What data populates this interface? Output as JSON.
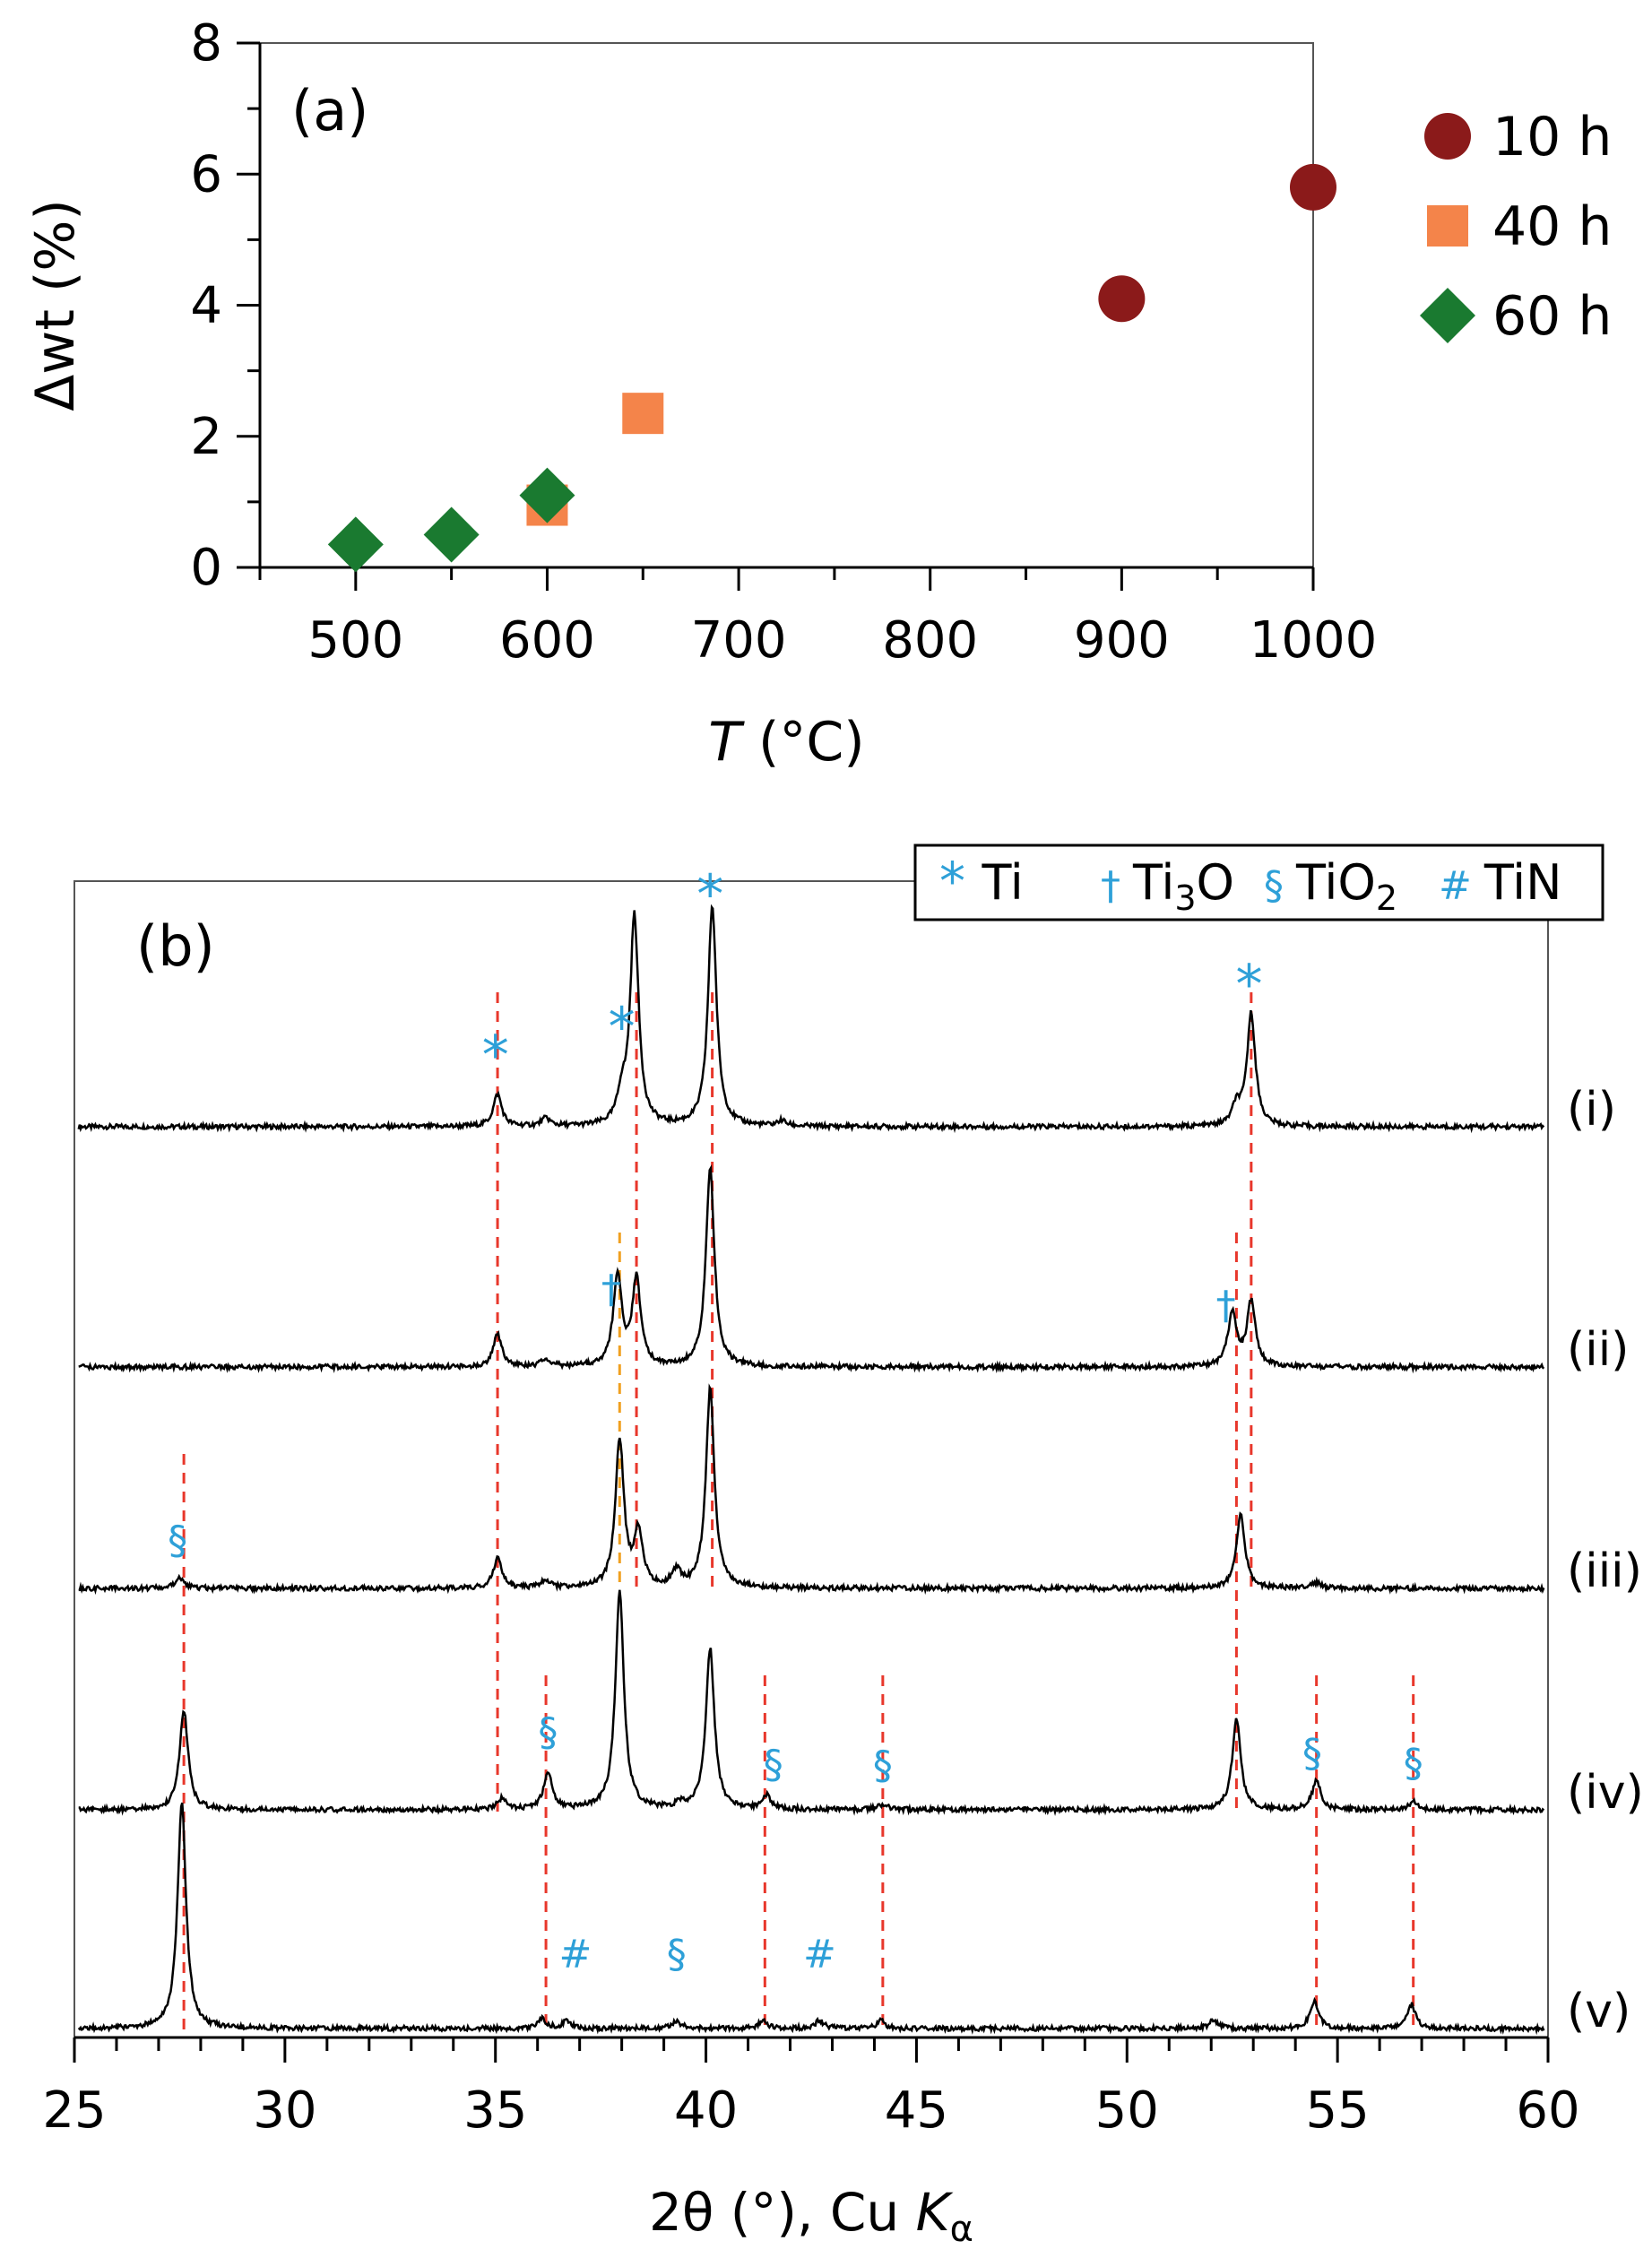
{
  "chart_data": [
    {
      "type": "scatter",
      "panel_label": "(a)",
      "xlabel_italic": "T",
      "xlabel_unit": " (°C)",
      "ylabel": "Δwt (%)",
      "xlim": [
        450,
        1000
      ],
      "ylim": [
        0,
        8
      ],
      "xticks": [
        "500",
        "600",
        "700",
        "800",
        "900",
        "1000"
      ],
      "yticks": [
        "0",
        "2",
        "4",
        "6",
        "8"
      ],
      "series": [
        {
          "name": "10 h",
          "marker": "circle",
          "color": "#8b1a1a",
          "points": [
            {
              "x": 900,
              "y": 4.1
            },
            {
              "x": 1000,
              "y": 5.8
            }
          ]
        },
        {
          "name": "40 h",
          "marker": "square",
          "color": "#f4844a",
          "points": [
            {
              "x": 600,
              "y": 0.95
            },
            {
              "x": 650,
              "y": 2.35
            }
          ]
        },
        {
          "name": "60 h",
          "marker": "diamond",
          "color": "#1a7a30",
          "points": [
            {
              "x": 500,
              "y": 0.35
            },
            {
              "x": 550,
              "y": 0.5
            },
            {
              "x": 600,
              "y": 1.1
            }
          ]
        }
      ]
    },
    {
      "type": "line",
      "panel_label": "(b)",
      "xlabel": "2θ (°), Cu ",
      "xlabel_italic": "K",
      "xlabel_sub": "α",
      "xlim": [
        25,
        60
      ],
      "xticks": [
        "25",
        "30",
        "35",
        "40",
        "45",
        "50",
        "55",
        "60"
      ],
      "legend": [
        {
          "symbol": "*",
          "label": "Ti"
        },
        {
          "symbol": "†",
          "label": "Ti",
          "sub": "3",
          "suffix": "O"
        },
        {
          "symbol": "§",
          "label": "TiO",
          "sub": "2",
          "suffix": ""
        },
        {
          "symbol": "#",
          "label": "TiN"
        }
      ],
      "patterns": [
        {
          "label": "(i)",
          "peaks": [
            [
              35.05,
              0.12
            ],
            [
              36.2,
              0.03
            ],
            [
              38.0,
              0.1
            ],
            [
              38.3,
              0.78
            ],
            [
              40.15,
              0.82
            ],
            [
              41.8,
              0.02
            ],
            [
              52.6,
              0.07
            ],
            [
              52.95,
              0.42
            ]
          ]
        },
        {
          "label": "(ii)",
          "peaks": [
            [
              35.05,
              0.12
            ],
            [
              36.2,
              0.03
            ],
            [
              37.9,
              0.34
            ],
            [
              38.35,
              0.32
            ],
            [
              40.1,
              0.74
            ],
            [
              52.5,
              0.2
            ],
            [
              52.95,
              0.24
            ]
          ]
        },
        {
          "label": "(iii)",
          "peaks": [
            [
              27.5,
              0.04
            ],
            [
              35.05,
              0.11
            ],
            [
              36.2,
              0.03
            ],
            [
              37.95,
              0.55
            ],
            [
              38.4,
              0.2
            ],
            [
              39.3,
              0.06
            ],
            [
              40.1,
              0.74
            ],
            [
              52.7,
              0.28
            ],
            [
              54.5,
              0.02
            ]
          ]
        },
        {
          "label": "(iv)",
          "peaks": [
            [
              27.6,
              0.37
            ],
            [
              35.15,
              0.04
            ],
            [
              36.25,
              0.14
            ],
            [
              37.95,
              0.82
            ],
            [
              39.4,
              0.02
            ],
            [
              40.1,
              0.6
            ],
            [
              41.45,
              0.05
            ],
            [
              44.2,
              0.02
            ],
            [
              52.6,
              0.34
            ],
            [
              54.5,
              0.11
            ],
            [
              56.8,
              0.03
            ]
          ]
        },
        {
          "label": "(v)",
          "peaks": [
            [
              27.55,
              0.84
            ],
            [
              36.1,
              0.04
            ],
            [
              36.7,
              0.03
            ],
            [
              39.3,
              0.03
            ],
            [
              41.35,
              0.03
            ],
            [
              42.7,
              0.03
            ],
            [
              44.15,
              0.03
            ],
            [
              52.05,
              0.03
            ],
            [
              54.45,
              0.1
            ],
            [
              56.75,
              0.09
            ]
          ]
        }
      ],
      "annotations": [
        {
          "pattern": 0,
          "x": 35.0,
          "symbol": "*"
        },
        {
          "pattern": 0,
          "x": 38.0,
          "symbol": "*"
        },
        {
          "pattern": 0,
          "x": 40.1,
          "symbol": "*"
        },
        {
          "pattern": 0,
          "x": 52.9,
          "symbol": "*"
        },
        {
          "pattern": 1,
          "x": 37.75,
          "symbol": "†"
        },
        {
          "pattern": 1,
          "x": 52.35,
          "symbol": "†"
        },
        {
          "pattern": 2,
          "x": 27.45,
          "symbol": "§"
        },
        {
          "pattern": 3,
          "x": 36.25,
          "symbol": "§"
        },
        {
          "pattern": 3,
          "x": 41.6,
          "symbol": "§"
        },
        {
          "pattern": 3,
          "x": 44.2,
          "symbol": "§"
        },
        {
          "pattern": 3,
          "x": 54.4,
          "symbol": "§"
        },
        {
          "pattern": 3,
          "x": 56.8,
          "symbol": "§"
        },
        {
          "pattern": 4,
          "x": 36.9,
          "symbol": "#"
        },
        {
          "pattern": 4,
          "x": 39.3,
          "symbol": "§"
        },
        {
          "pattern": 4,
          "x": 42.7,
          "symbol": "#"
        }
      ],
      "reference_lines": [
        {
          "x": 27.6,
          "from": 2,
          "to": 4,
          "color": "#e8372b"
        },
        {
          "x": 35.05,
          "from": 0,
          "to": 3,
          "color": "#e8372b"
        },
        {
          "x": 36.2,
          "from": 3,
          "to": 4,
          "color": "#e8372b"
        },
        {
          "x": 37.95,
          "from": 1,
          "to": 2,
          "color": "#f0a020"
        },
        {
          "x": 38.35,
          "from": 0,
          "to": 2,
          "color": "#e8372b"
        },
        {
          "x": 40.15,
          "from": 0,
          "to": 2,
          "color": "#e8372b"
        },
        {
          "x": 41.4,
          "from": 3,
          "to": 4,
          "color": "#e8372b"
        },
        {
          "x": 44.2,
          "from": 3,
          "to": 4,
          "color": "#e8372b"
        },
        {
          "x": 52.6,
          "from": 1,
          "to": 3,
          "color": "#e8372b"
        },
        {
          "x": 52.95,
          "from": 0,
          "to": 2,
          "color": "#e8372b"
        },
        {
          "x": 54.5,
          "from": 3,
          "to": 4,
          "color": "#e8372b"
        },
        {
          "x": 56.8,
          "from": 3,
          "to": 4,
          "color": "#e8372b"
        }
      ]
    }
  ],
  "colors": {
    "symbol": "#2ea0d8",
    "axis": "#000000"
  }
}
